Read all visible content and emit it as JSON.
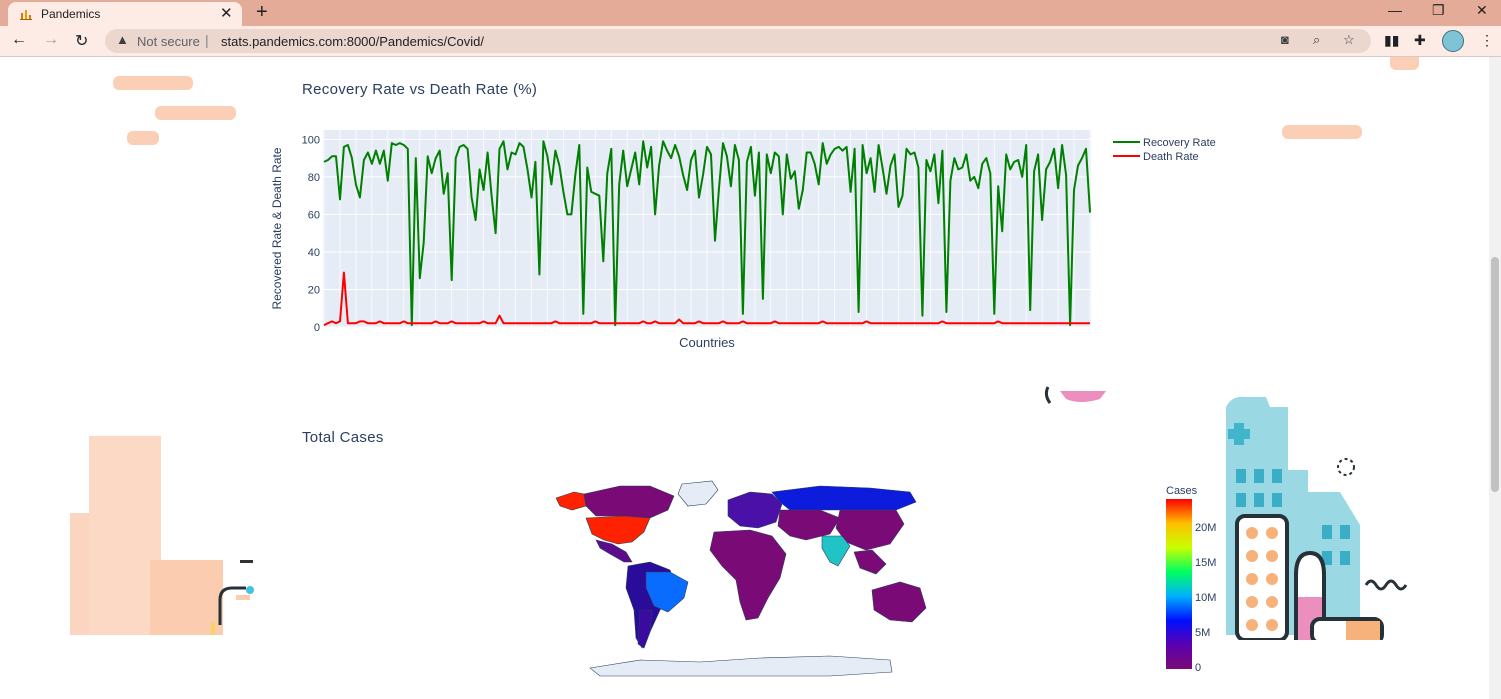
{
  "browser": {
    "tab_title": "Pandemics",
    "not_secure": "Not secure",
    "url": "stats.pandemics.com:8000/Pandemics/Covid/"
  },
  "colors": {
    "recovery": "#008000",
    "death": "#ff0000",
    "plot_bg": "#e5ecf6",
    "title": "#2a3f5f"
  },
  "chart_data": [
    {
      "type": "line",
      "title": "Recovery Rate vs Death Rate (%)",
      "xlabel": "Countries",
      "ylabel": "Recovered Rate & Death Rate",
      "ylim": [
        0,
        105
      ],
      "yticks": [
        "0",
        "20",
        "40",
        "60",
        "80",
        "100"
      ],
      "legend_position": "top-right",
      "series": [
        {
          "name": "Recovery Rate",
          "values": [
            88,
            89,
            91,
            91,
            68,
            96,
            97,
            90,
            76,
            69,
            89,
            93,
            87,
            94,
            87,
            94,
            78,
            98,
            97,
            98,
            97,
            95,
            1,
            90,
            26,
            45,
            91,
            82,
            90,
            94,
            71,
            82,
            25,
            90,
            96,
            97,
            95,
            69,
            57,
            84,
            73,
            93,
            70,
            50,
            95,
            99,
            84,
            93,
            92,
            98,
            96,
            84,
            69,
            88,
            28,
            99,
            91,
            76,
            94,
            86,
            72,
            60,
            60,
            81,
            97,
            7,
            85,
            72,
            71,
            70,
            35,
            82,
            95,
            1,
            76,
            94,
            75,
            84,
            93,
            76,
            99,
            85,
            96,
            60,
            86,
            99,
            94,
            90,
            97,
            91,
            81,
            73,
            89,
            94,
            69,
            81,
            96,
            92,
            46,
            74,
            98,
            91,
            75,
            97,
            89,
            7,
            88,
            96,
            70,
            93,
            15,
            92,
            82,
            93,
            91,
            60,
            92,
            79,
            83,
            63,
            73,
            93,
            93,
            87,
            76,
            98,
            87,
            92,
            95,
            96,
            94,
            96,
            72,
            95,
            8,
            97,
            82,
            90,
            72,
            97,
            85,
            71,
            86,
            92,
            64,
            70,
            95,
            92,
            93,
            85,
            6,
            89,
            83,
            92,
            66,
            94,
            8,
            78,
            90,
            84,
            85,
            92,
            78,
            80,
            74,
            87,
            90,
            82,
            7,
            75,
            51,
            92,
            84,
            88,
            89,
            80,
            97,
            9,
            83,
            92,
            57,
            84,
            88,
            95,
            74,
            97,
            81,
            1,
            73,
            86,
            90,
            95,
            61
          ]
        },
        {
          "name": "Death Rate",
          "values": [
            1,
            2,
            3,
            2,
            3,
            29,
            2,
            2,
            2,
            3,
            3,
            2,
            2,
            2,
            3,
            2,
            2,
            2,
            2,
            2,
            3,
            2,
            2,
            2,
            2,
            2,
            2,
            2,
            3,
            2,
            2,
            2,
            3,
            2,
            2,
            2,
            2,
            2,
            2,
            2,
            3,
            2,
            2,
            2,
            6,
            2,
            2,
            2,
            2,
            2,
            2,
            2,
            2,
            2,
            2,
            2,
            2,
            2,
            3,
            2,
            2,
            2,
            2,
            2,
            2,
            2,
            2,
            2,
            3,
            2,
            2,
            2,
            2,
            2,
            2,
            2,
            2,
            2,
            2,
            2,
            3,
            2,
            2,
            3,
            2,
            2,
            2,
            2,
            2,
            4,
            2,
            2,
            2,
            2,
            3,
            2,
            2,
            2,
            2,
            2,
            3,
            2,
            2,
            2,
            2,
            3,
            2,
            2,
            2,
            2,
            2,
            2,
            2,
            3,
            2,
            2,
            2,
            2,
            2,
            2,
            2,
            2,
            2,
            2,
            2,
            3,
            2,
            2,
            2,
            2,
            2,
            2,
            2,
            2,
            2,
            2,
            3,
            2,
            2,
            2,
            2,
            2,
            2,
            2,
            2,
            2,
            2,
            2,
            2,
            2,
            2,
            2,
            2,
            2,
            2,
            3,
            2,
            2,
            2,
            2,
            2,
            2,
            2,
            2,
            2,
            2,
            2,
            2,
            2,
            3,
            2,
            2,
            2,
            2,
            2,
            2,
            2,
            2,
            2,
            2,
            2,
            2,
            2,
            2,
            2,
            2,
            2,
            2,
            2,
            2,
            2,
            2,
            2
          ]
        }
      ]
    },
    {
      "type": "heatmap",
      "title": "Total Cases",
      "colorbar_title": "Cases",
      "colorbar_ticks": [
        "20M",
        "15M",
        "10M",
        "5M",
        "0"
      ],
      "regions": [
        {
          "name": "USA",
          "value": 24000000
        },
        {
          "name": "Brazil",
          "value": 9000000
        },
        {
          "name": "India",
          "value": 11000000
        },
        {
          "name": "Russia",
          "value": 4000000
        },
        {
          "name": "Europe",
          "value": 2000000
        },
        {
          "name": "Rest of world",
          "value": 500000
        }
      ]
    }
  ]
}
